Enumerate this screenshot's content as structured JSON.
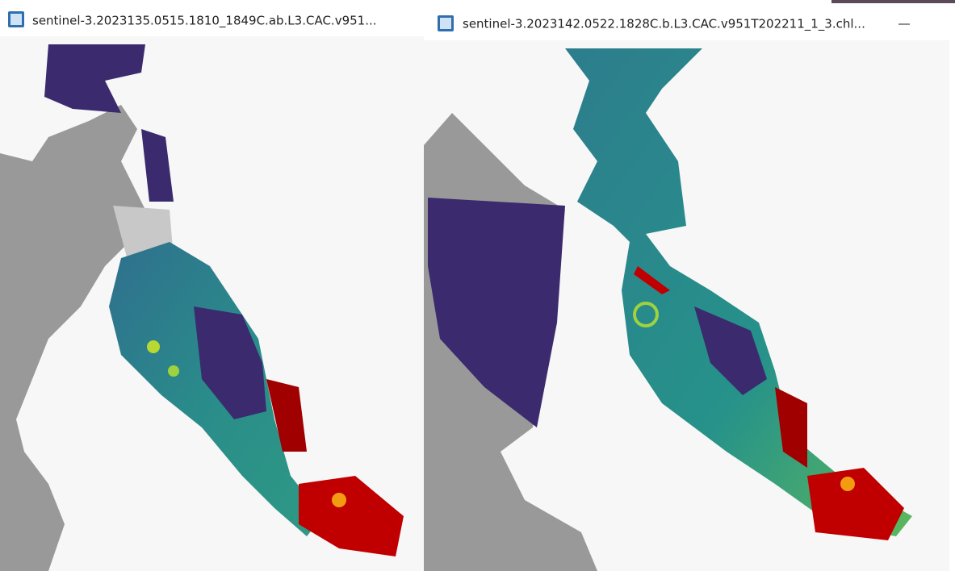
{
  "windows": [
    {
      "title": "sentinel-3.2023135.0515.1810_1849C.ab.L3.CAC.v951..."
    },
    {
      "title": "sentinel-3.2023142.0522.1828C.b.L3.CAC.v951T202211_1_3.chl..."
    }
  ]
}
